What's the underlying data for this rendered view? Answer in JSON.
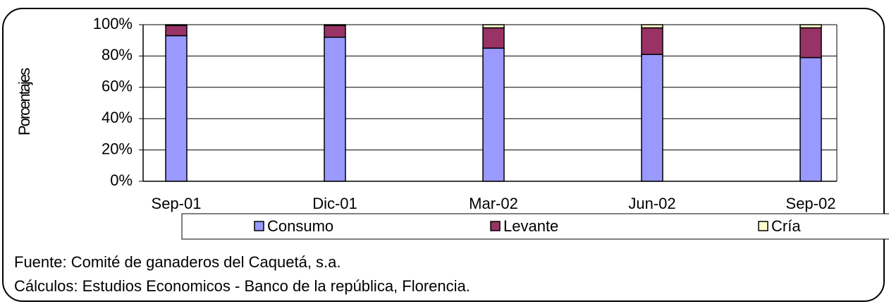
{
  "chart_data": {
    "type": "stacked-bar",
    "y_label": "Porcentajes",
    "categories": [
      "Sep-01",
      "Dic-01",
      "Mar-02",
      "Jun-02",
      "Sep-02"
    ],
    "series": [
      {
        "name": "Consumo",
        "color": "#9999ff",
        "values": [
          93,
          92,
          85,
          81,
          79
        ]
      },
      {
        "name": "Levante",
        "color": "#993366",
        "values": [
          6.5,
          7.5,
          13,
          17,
          19
        ]
      },
      {
        "name": "Cría",
        "color": "#ffffcc",
        "values": [
          0.5,
          0.5,
          2,
          2,
          2
        ]
      }
    ],
    "ylim": [
      0,
      100
    ],
    "yticks": [
      {
        "value": 0,
        "label": "0%"
      },
      {
        "value": 20,
        "label": "20%"
      },
      {
        "value": 40,
        "label": "40%"
      },
      {
        "value": 60,
        "label": "60%"
      },
      {
        "value": 80,
        "label": "80%"
      },
      {
        "value": 100,
        "label": "100%"
      }
    ],
    "grid": true,
    "legend": "bottom",
    "notes": [
      "Fuente: Comité de ganaderos del Caquetá, s.a.",
      "Cálculos: Estudios Economicos - Banco de la república, Florencia."
    ]
  }
}
